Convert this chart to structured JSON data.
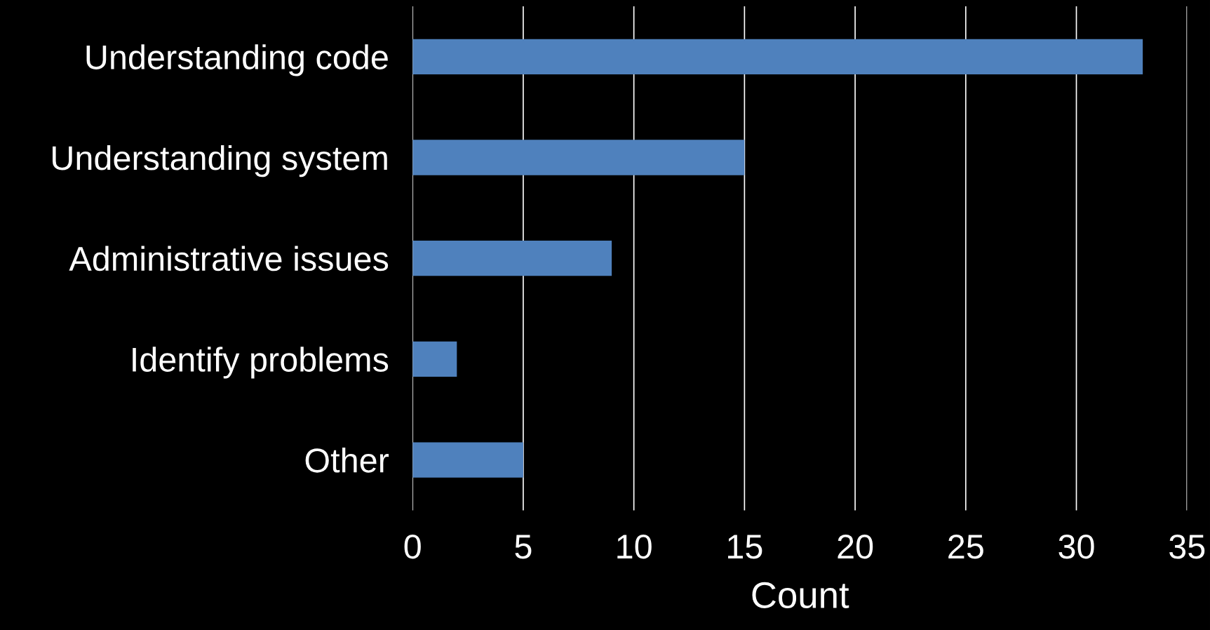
{
  "chart_data": {
    "type": "bar",
    "orientation": "horizontal",
    "categories": [
      "Understanding code",
      "Understanding system",
      "Administrative issues",
      "Identify problems",
      "Other"
    ],
    "values": [
      33,
      15,
      9,
      2,
      5
    ],
    "color": "#4f81bd",
    "xlabel": "Count",
    "xlim": [
      0,
      35
    ],
    "xticks": [
      0,
      5,
      10,
      15,
      20,
      25,
      30,
      35
    ],
    "grid": "x"
  }
}
